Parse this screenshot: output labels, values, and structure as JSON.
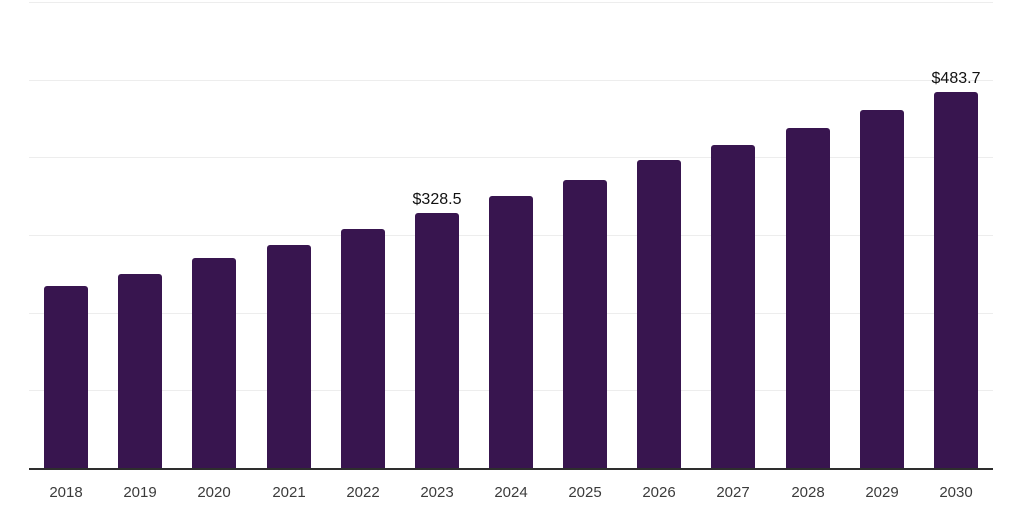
{
  "chart_data": {
    "type": "bar",
    "title": "",
    "xlabel": "",
    "ylabel": "",
    "categories": [
      "2018",
      "2019",
      "2020",
      "2021",
      "2022",
      "2023",
      "2024",
      "2025",
      "2026",
      "2027",
      "2028",
      "2029",
      "2030"
    ],
    "values": [
      233.9,
      250.1,
      269.9,
      286.9,
      307.4,
      328.5,
      350.4,
      371.1,
      396.2,
      416.4,
      438.0,
      461.2,
      483.7
    ],
    "data_labels": {
      "2023": "$328.5",
      "2030": "$483.7"
    },
    "ylim": [
      0,
      600
    ],
    "grid_step": 100,
    "grid": true,
    "legend": false,
    "y_tick_labels_visible": false,
    "colors": {
      "bar": "#38154f",
      "gridline": "#ededed",
      "axis_line": "#2e2e2e",
      "tick_label": "#3b3b3b",
      "data_label": "#111111",
      "background": "#ffffff"
    }
  }
}
